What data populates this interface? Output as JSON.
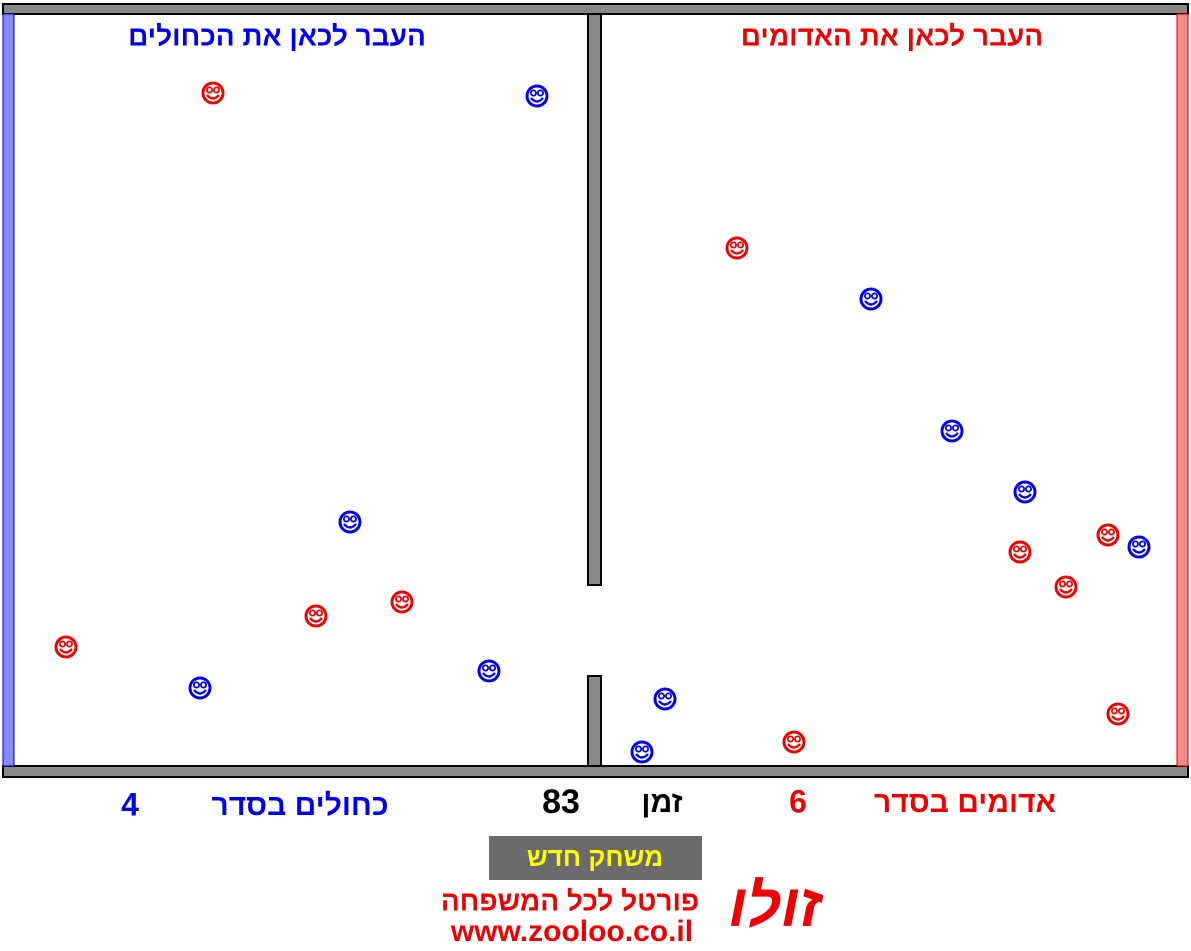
{
  "targets": {
    "blue": "העבר לכאן את הכחולים",
    "red": "העבר לכאן את האדומים"
  },
  "status": {
    "blue_label": "כחולים בסדר",
    "blue_count": 4,
    "time_label": "זמן",
    "time": 83,
    "red_count": 6,
    "red_label": "אדומים בסדר"
  },
  "button": "משחק חדש",
  "logo": {
    "name": "זולו",
    "tagline": "פורטל לכל המשפחה",
    "url": "www.zooloo.co.il"
  }
}
